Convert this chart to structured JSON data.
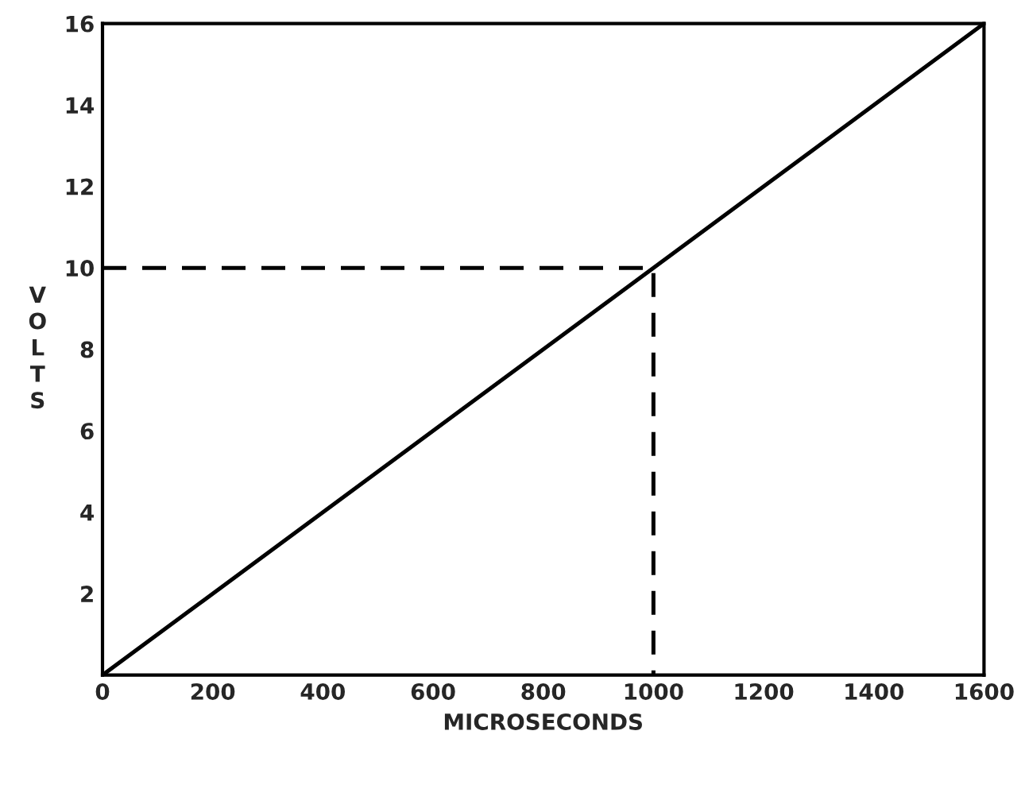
{
  "chart_data": {
    "type": "line",
    "xlabel": "MICROSECONDS",
    "ylabel": "VOLTS",
    "xlim": [
      0,
      1600
    ],
    "ylim": [
      0,
      16
    ],
    "xticks": [
      0,
      200,
      400,
      600,
      800,
      1000,
      1200,
      1400,
      1600
    ],
    "yticks": [
      {
        "value": 0,
        "label": null
      },
      2,
      4,
      6,
      8,
      10,
      12,
      14,
      16
    ],
    "grid": false,
    "legend": false,
    "series": [
      {
        "x": [
          0,
          1600
        ],
        "values": [
          0,
          16
        ],
        "color": "#000000",
        "line_style": "solid"
      },
      {
        "x": [
          0,
          1000,
          1000
        ],
        "values": [
          10,
          10,
          0
        ],
        "color": "#000000",
        "line_style": "dashed"
      }
    ]
  }
}
